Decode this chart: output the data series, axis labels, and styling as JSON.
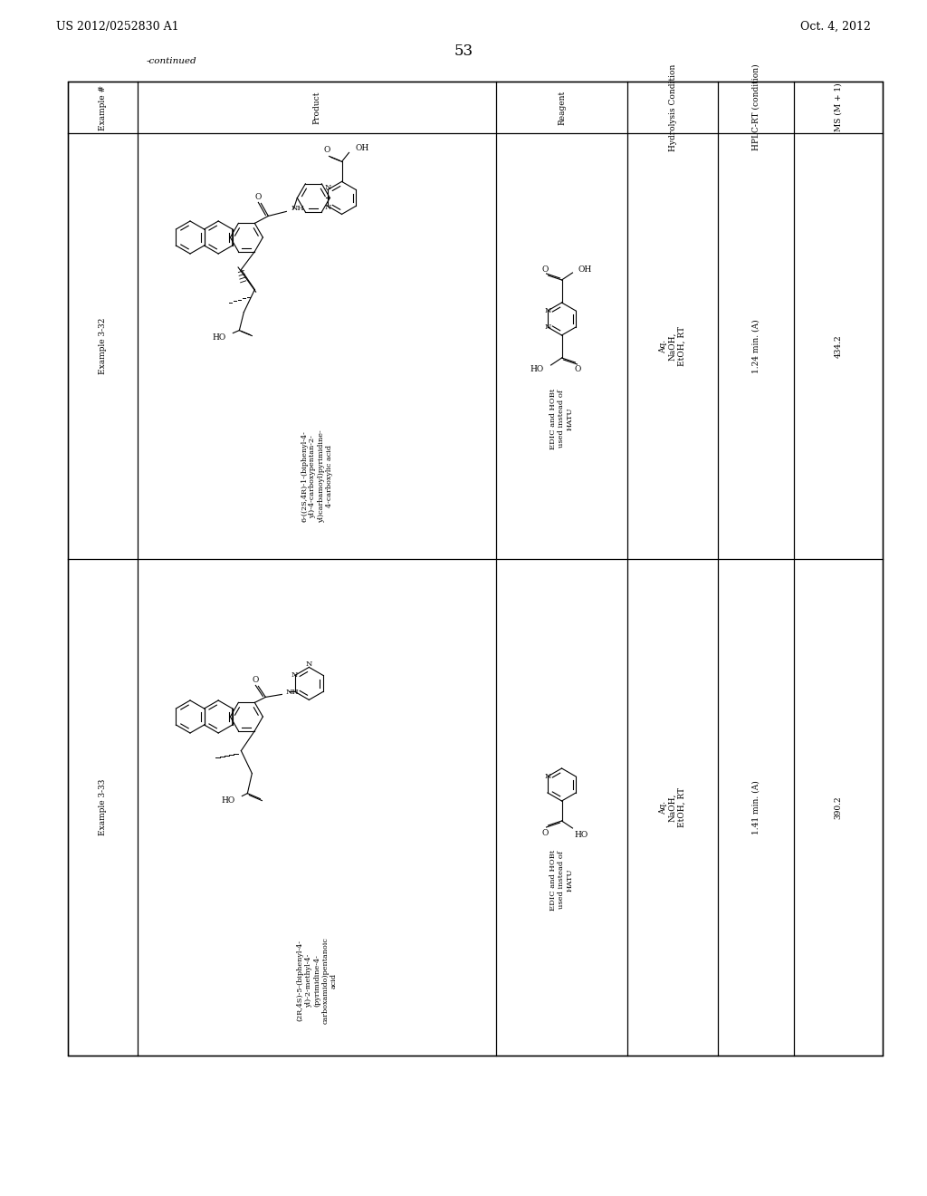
{
  "title_left": "US 2012/0252830 A1",
  "title_right": "Oct. 4, 2012",
  "page_num": "53",
  "continued": "-continued",
  "col_headers": [
    "Example #",
    "Product",
    "Reagent",
    "Hydrolysis Condition",
    "HPLC-RT (condition)",
    "MS (M + 1)"
  ],
  "row1_example": "Example 3-32",
  "row1_product_name": "6-((2S,4R)-1-(biphenyl-4-\nyl)-4-carboxypentан-2-\nyl)carbamoyl)pyrimidine-\n4-carboxylic acid",
  "row1_reagent_note": "EDIC and HOBt\nused instead of\nHATU",
  "row1_hydrolysis": "Aq.\nNaOH,\nEtOH, RT",
  "row1_hplc": "1.24 min. (A)",
  "row1_ms": "434.2",
  "row2_example": "Example 3-33",
  "row2_product_name": "(2R,4S)-5-(biphenyl-4-\nyl)-2-methyl-4-\n(pyrimidine-4-\ncarboxamido)pentanoic\nacid",
  "row2_reagent_note": "EDIC and HOBt\nused instead of\nHATU",
  "row2_hydrolysis": "Aq.\nNaOH,\nEtOH, RT",
  "row2_hplc": "1.41 min. (A)",
  "row2_ms": "390.2",
  "bg_color": "#ffffff"
}
